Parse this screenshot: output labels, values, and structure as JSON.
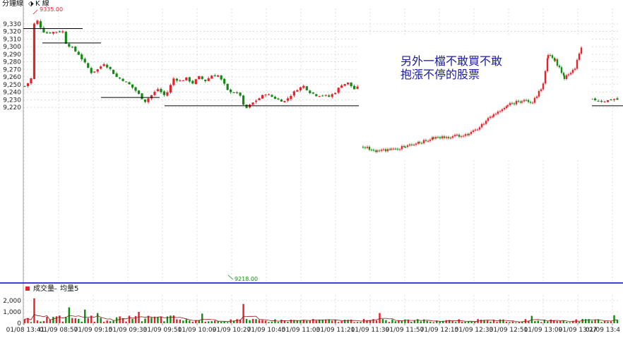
{
  "header": {
    "tab_minute": "分鐘線",
    "tab_kline": "K 線",
    "volume_legend": "成交量",
    "volume_ma_legend": "均量5"
  },
  "annotation": [
    "另外一檔不敢買不敢",
    "抱漲不停的股票"
  ],
  "colors": {
    "up": "#e8202a",
    "down": "#138a13",
    "hline": "#000000",
    "divider": "#0000cc",
    "annotation": "#1a1aa0",
    "vol_ma": "#8b1a1a"
  },
  "chart_data": {
    "type": "candlestick",
    "ylim": [
      9215,
      9337
    ],
    "y_ticks": [
      "9,330",
      "9,320",
      "9,310",
      "9,300",
      "9,290",
      "9,280",
      "9,270",
      "9,260",
      "9,250",
      "9,240",
      "9,230",
      "9,220"
    ],
    "x_ticks": [
      "01/08 13:41",
      "01/09 08:57",
      "01/09 09:15",
      "01/09 09:33",
      "01/09 09:51",
      "01/09 10:09",
      "01/09 10:27",
      "01/09 10:45",
      "01/09 11:03",
      "01/09 11:21",
      "01/09 11:39",
      "01/09 11:57",
      "01/09 12:15",
      "01/09 12:33",
      "01/09 12:51",
      "01/09 13:09",
      "01/09 13:27",
      "01/09 13:4"
    ],
    "high_label": "9335.00",
    "low_label": "9218.00",
    "close_path": [
      [
        0,
        9248
      ],
      [
        1,
        9252
      ],
      [
        2,
        9258
      ],
      [
        3,
        9330
      ],
      [
        4,
        9334
      ],
      [
        5,
        9326
      ],
      [
        6,
        9320
      ],
      [
        7,
        9318
      ],
      [
        10,
        9320
      ],
      [
        12,
        9320
      ],
      [
        13,
        9305
      ],
      [
        15,
        9298
      ],
      [
        17,
        9290
      ],
      [
        19,
        9278
      ],
      [
        21,
        9266
      ],
      [
        23,
        9270
      ],
      [
        25,
        9278
      ],
      [
        27,
        9270
      ],
      [
        29,
        9260
      ],
      [
        31,
        9256
      ],
      [
        33,
        9250
      ],
      [
        35,
        9242
      ],
      [
        37,
        9232
      ],
      [
        38,
        9228
      ],
      [
        40,
        9236
      ],
      [
        42,
        9244
      ],
      [
        44,
        9236
      ],
      [
        45,
        9240
      ],
      [
        47,
        9258
      ],
      [
        49,
        9255
      ],
      [
        51,
        9258
      ],
      [
        53,
        9252
      ],
      [
        55,
        9260
      ],
      [
        57,
        9255
      ],
      [
        59,
        9262
      ],
      [
        61,
        9262
      ],
      [
        63,
        9250
      ],
      [
        64,
        9242
      ],
      [
        66,
        9240
      ],
      [
        68,
        9236
      ],
      [
        69,
        9222
      ],
      [
        70,
        9219
      ],
      [
        72,
        9226
      ],
      [
        74,
        9232
      ],
      [
        76,
        9238
      ],
      [
        78,
        9234
      ],
      [
        80,
        9230
      ],
      [
        82,
        9228
      ],
      [
        84,
        9236
      ],
      [
        86,
        9244
      ],
      [
        88,
        9248
      ],
      [
        90,
        9240
      ],
      [
        92,
        9236
      ],
      [
        94,
        9236
      ],
      [
        96,
        9234
      ],
      [
        98,
        9240
      ],
      [
        100,
        9250
      ],
      [
        102,
        9252
      ],
      [
        104,
        9244
      ],
      [
        106,
        9248
      ],
      [
        108,
        9244
      ],
      [
        110,
        9248
      ],
      [
        112,
        9252
      ],
      [
        114,
        9258
      ],
      [
        116,
        9254
      ],
      [
        118,
        9250
      ],
      [
        120,
        9252
      ],
      [
        122,
        9248
      ],
      [
        124,
        9244
      ],
      [
        126,
        9240
      ],
      [
        128,
        9238
      ],
      [
        130,
        9240
      ],
      [
        132,
        9232
      ],
      [
        134,
        9229
      ],
      [
        136,
        9230
      ],
      [
        138,
        9234
      ],
      [
        140,
        9232
      ],
      [
        142,
        9234
      ],
      [
        144,
        9238
      ],
      [
        146,
        9236
      ],
      [
        148,
        9234
      ],
      [
        150,
        9236
      ],
      [
        152,
        9234
      ],
      [
        154,
        9236
      ],
      [
        156,
        9236
      ],
      [
        158,
        9230
      ],
      [
        160,
        9228
      ],
      [
        162,
        9230
      ],
      [
        164,
        9230
      ],
      [
        166,
        9236
      ],
      [
        168,
        9234
      ],
      [
        170,
        9232
      ],
      [
        172,
        9230
      ],
      [
        174,
        9228
      ],
      [
        176,
        9229
      ],
      [
        178,
        9230
      ],
      [
        180,
        9230
      ],
      [
        182,
        9228
      ],
      [
        184,
        9229
      ],
      [
        186,
        9231
      ],
      [
        187,
        9230
      ]
    ],
    "level_lines": [
      9324,
      9305,
      9233,
      9222
    ],
    "volume": {
      "y_ticks": [
        "2,000",
        "1,000",
        "0"
      ],
      "ylim": [
        0,
        2500
      ],
      "spikes": [
        [
          3,
          2200
        ],
        [
          14,
          1400
        ],
        [
          19,
          1200
        ],
        [
          23,
          900
        ],
        [
          36,
          1000
        ],
        [
          56,
          850
        ],
        [
          69,
          1700
        ],
        [
          112,
          900
        ],
        [
          160,
          650
        ],
        [
          186,
          700
        ]
      ]
    }
  }
}
